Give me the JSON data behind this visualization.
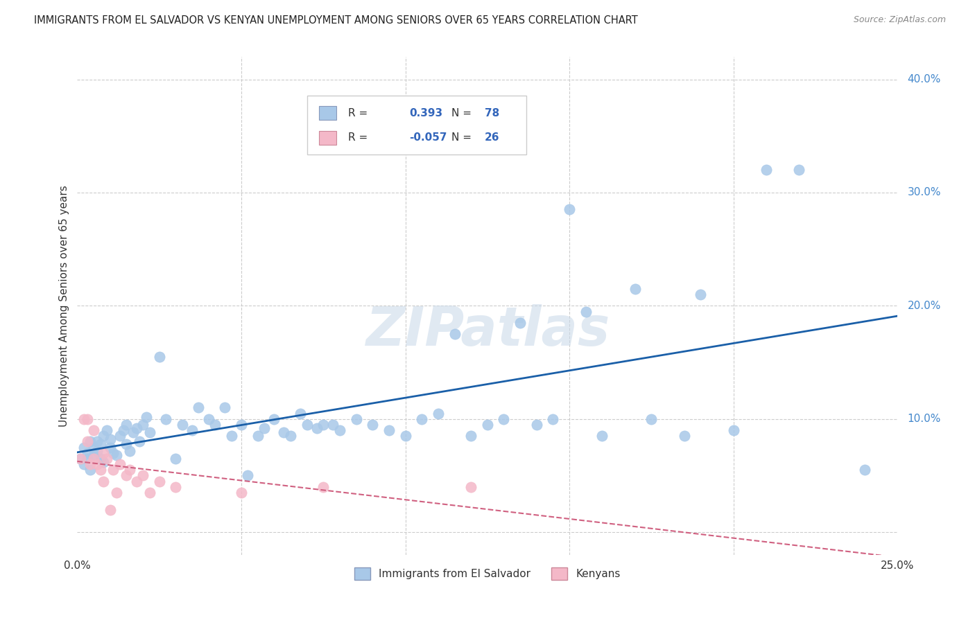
{
  "title": "IMMIGRANTS FROM EL SALVADOR VS KENYAN UNEMPLOYMENT AMONG SENIORS OVER 65 YEARS CORRELATION CHART",
  "source": "Source: ZipAtlas.com",
  "ylabel": "Unemployment Among Seniors over 65 years",
  "xlim": [
    0.0,
    0.25
  ],
  "ylim": [
    -0.02,
    0.42
  ],
  "yticks": [
    0.0,
    0.1,
    0.2,
    0.3,
    0.4
  ],
  "watermark": "ZIPatlas",
  "legend_entries": [
    {
      "label": "Immigrants from El Salvador",
      "R": "0.393",
      "N": "78",
      "color": "#a8c8e8",
      "line_color": "#1a5fa8"
    },
    {
      "label": "Kenyans",
      "R": "-0.057",
      "N": "26",
      "color": "#f4b8c8",
      "line_color": "#d06080"
    }
  ],
  "el_salvador_x": [
    0.001,
    0.002,
    0.002,
    0.003,
    0.003,
    0.004,
    0.004,
    0.005,
    0.005,
    0.006,
    0.006,
    0.007,
    0.007,
    0.008,
    0.008,
    0.009,
    0.01,
    0.01,
    0.011,
    0.012,
    0.013,
    0.014,
    0.015,
    0.015,
    0.016,
    0.017,
    0.018,
    0.019,
    0.02,
    0.021,
    0.022,
    0.025,
    0.027,
    0.03,
    0.032,
    0.035,
    0.037,
    0.04,
    0.042,
    0.045,
    0.047,
    0.05,
    0.052,
    0.055,
    0.057,
    0.06,
    0.063,
    0.065,
    0.068,
    0.07,
    0.073,
    0.075,
    0.078,
    0.08,
    0.085,
    0.09,
    0.095,
    0.1,
    0.105,
    0.11,
    0.115,
    0.12,
    0.125,
    0.13,
    0.135,
    0.14,
    0.145,
    0.15,
    0.155,
    0.16,
    0.17,
    0.175,
    0.185,
    0.19,
    0.2,
    0.21,
    0.22,
    0.24
  ],
  "el_salvador_y": [
    0.065,
    0.06,
    0.075,
    0.07,
    0.065,
    0.08,
    0.055,
    0.075,
    0.068,
    0.072,
    0.08,
    0.065,
    0.078,
    0.085,
    0.062,
    0.09,
    0.075,
    0.082,
    0.07,
    0.068,
    0.085,
    0.09,
    0.078,
    0.095,
    0.072,
    0.088,
    0.092,
    0.08,
    0.095,
    0.102,
    0.088,
    0.155,
    0.1,
    0.065,
    0.095,
    0.09,
    0.11,
    0.1,
    0.095,
    0.11,
    0.085,
    0.095,
    0.05,
    0.085,
    0.092,
    0.1,
    0.088,
    0.085,
    0.105,
    0.095,
    0.092,
    0.095,
    0.095,
    0.09,
    0.1,
    0.095,
    0.09,
    0.085,
    0.1,
    0.105,
    0.175,
    0.085,
    0.095,
    0.1,
    0.185,
    0.095,
    0.1,
    0.285,
    0.195,
    0.085,
    0.215,
    0.1,
    0.085,
    0.21,
    0.09,
    0.32,
    0.32,
    0.055
  ],
  "kenyan_x": [
    0.001,
    0.002,
    0.003,
    0.003,
    0.004,
    0.005,
    0.005,
    0.006,
    0.007,
    0.008,
    0.008,
    0.009,
    0.01,
    0.011,
    0.012,
    0.013,
    0.015,
    0.016,
    0.018,
    0.02,
    0.022,
    0.025,
    0.03,
    0.05,
    0.075,
    0.12
  ],
  "kenyan_y": [
    0.065,
    0.1,
    0.08,
    0.1,
    0.06,
    0.09,
    0.065,
    0.06,
    0.055,
    0.07,
    0.045,
    0.065,
    0.02,
    0.055,
    0.035,
    0.06,
    0.05,
    0.055,
    0.045,
    0.05,
    0.035,
    0.045,
    0.04,
    0.035,
    0.04,
    0.04
  ]
}
